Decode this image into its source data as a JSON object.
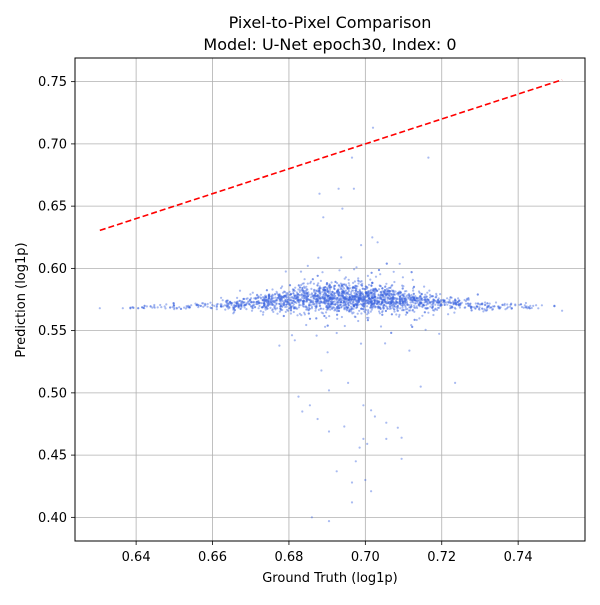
{
  "chart_data": {
    "type": "scatter",
    "title": "Pixel-to-Pixel Comparison",
    "subtitle": "Model: U-Net epoch30, Index: 0",
    "xlabel": "Ground Truth (log1p)",
    "ylabel": "Prediction (log1p)",
    "xlim": [
      0.624,
      0.7575
    ],
    "ylim": [
      0.381,
      0.769
    ],
    "xticks": [
      0.64,
      0.66,
      0.68,
      0.7,
      0.72,
      0.74
    ],
    "xtick_labels": [
      "0.64",
      "0.66",
      "0.68",
      "0.70",
      "0.72",
      "0.74"
    ],
    "yticks": [
      0.4,
      0.45,
      0.5,
      0.55,
      0.6,
      0.65,
      0.7,
      0.75
    ],
    "ytick_labels": [
      "0.40",
      "0.45",
      "0.50",
      "0.55",
      "0.60",
      "0.65",
      "0.70",
      "0.75"
    ],
    "grid": true,
    "series": [
      {
        "name": "pixels",
        "kind": "scatter",
        "color": "#4169e1",
        "approx_point_count": 2400,
        "core_center": [
          0.695,
          0.574
        ],
        "x_range": [
          0.6305,
          0.7515
        ],
        "outliers": [
          {
            "x": 0.6305,
            "y": 0.568
          },
          {
            "x": 0.6365,
            "y": 0.568
          },
          {
            "x": 0.7515,
            "y": 0.566
          },
          {
            "x": 0.702,
            "y": 0.713
          },
          {
            "x": 0.7165,
            "y": 0.689
          },
          {
            "x": 0.6965,
            "y": 0.689
          },
          {
            "x": 0.688,
            "y": 0.66
          },
          {
            "x": 0.693,
            "y": 0.664
          },
          {
            "x": 0.697,
            "y": 0.664
          },
          {
            "x": 0.694,
            "y": 0.648
          },
          {
            "x": 0.689,
            "y": 0.641
          },
          {
            "x": 0.686,
            "y": 0.4
          },
          {
            "x": 0.6905,
            "y": 0.397
          },
          {
            "x": 0.6965,
            "y": 0.412
          },
          {
            "x": 0.7015,
            "y": 0.421
          },
          {
            "x": 0.6965,
            "y": 0.428
          },
          {
            "x": 0.7,
            "y": 0.43
          },
          {
            "x": 0.6925,
            "y": 0.437
          },
          {
            "x": 0.6975,
            "y": 0.445
          },
          {
            "x": 0.6985,
            "y": 0.456
          },
          {
            "x": 0.7095,
            "y": 0.447
          },
          {
            "x": 0.6995,
            "y": 0.463
          },
          {
            "x": 0.7005,
            "y": 0.459
          },
          {
            "x": 0.6945,
            "y": 0.473
          },
          {
            "x": 0.6855,
            "y": 0.49
          },
          {
            "x": 0.6825,
            "y": 0.497
          },
          {
            "x": 0.6835,
            "y": 0.485
          },
          {
            "x": 0.6875,
            "y": 0.479
          },
          {
            "x": 0.6905,
            "y": 0.469
          },
          {
            "x": 0.7025,
            "y": 0.481
          },
          {
            "x": 0.7055,
            "y": 0.476
          },
          {
            "x": 0.7015,
            "y": 0.486
          },
          {
            "x": 0.6995,
            "y": 0.49
          },
          {
            "x": 0.7085,
            "y": 0.472
          },
          {
            "x": 0.7095,
            "y": 0.464
          },
          {
            "x": 0.7145,
            "y": 0.505
          },
          {
            "x": 0.6775,
            "y": 0.538
          },
          {
            "x": 0.7235,
            "y": 0.508
          },
          {
            "x": 0.6905,
            "y": 0.502
          },
          {
            "x": 0.7055,
            "y": 0.463
          },
          {
            "x": 0.6955,
            "y": 0.508
          },
          {
            "x": 0.6885,
            "y": 0.518
          }
        ]
      },
      {
        "name": "y = x",
        "kind": "line",
        "style": "dashed",
        "color": "#ff0000",
        "x": [
          0.6305,
          0.7515
        ],
        "y": [
          0.6305,
          0.7515
        ]
      }
    ]
  }
}
